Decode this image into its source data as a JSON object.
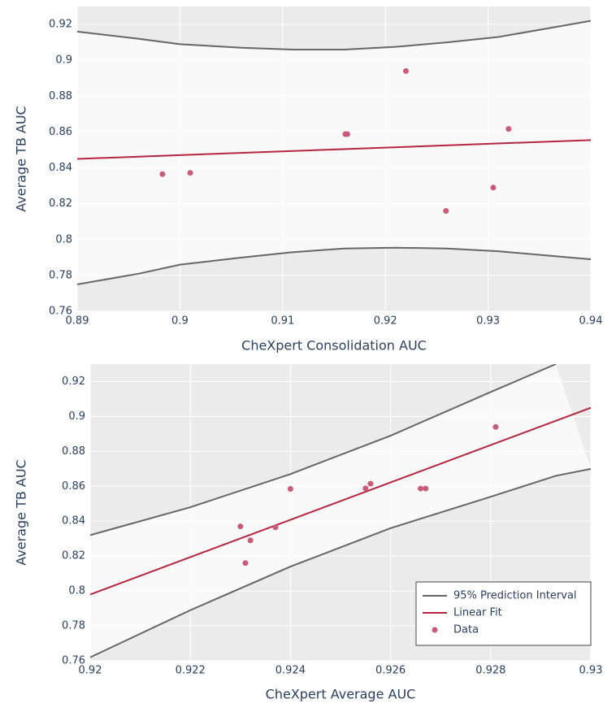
{
  "chart_data": [
    {
      "type": "scatter",
      "x_label": "CheXpert Consolidation AUC",
      "y_label": "Average TB AUC",
      "xlim": [
        0.89,
        0.94
      ],
      "xticks": [
        0.89,
        0.9,
        0.91,
        0.92,
        0.93,
        0.94
      ],
      "ylim": [
        0.76,
        0.93
      ],
      "yticks": [
        0.76,
        0.78,
        0.8,
        0.82,
        0.84,
        0.86,
        0.88,
        0.9,
        0.92
      ],
      "grid": true,
      "legend": false,
      "series": [
        {
          "mode": "band",
          "color": "#666666",
          "x": [
            0.89,
            0.896,
            0.9,
            0.906,
            0.911,
            0.916,
            0.921,
            0.926,
            0.931,
            0.936,
            0.94
          ],
          "upper": [
            0.916,
            0.912,
            0.909,
            0.907,
            0.906,
            0.906,
            0.9075,
            0.91,
            0.913,
            0.918,
            0.922
          ],
          "lower": [
            0.775,
            0.781,
            0.786,
            0.79,
            0.793,
            0.795,
            0.7955,
            0.795,
            0.7935,
            0.791,
            0.789
          ]
        },
        {
          "mode": "line",
          "color": "#b5253f",
          "x": [
            0.89,
            0.94
          ],
          "values": [
            0.845,
            0.8555
          ]
        },
        {
          "mode": "markers",
          "color": "#c95a78",
          "x": [
            0.8983,
            0.901,
            0.9161,
            0.9163,
            0.922,
            0.9259,
            0.9305,
            0.932
          ],
          "values": [
            0.8365,
            0.8372,
            0.8588,
            0.8588,
            0.894,
            0.816,
            0.829,
            0.8617
          ]
        }
      ]
    },
    {
      "type": "scatter",
      "x_label": "CheXpert Average AUC",
      "y_label": "Average TB AUC",
      "xlim": [
        0.92,
        0.93
      ],
      "xticks": [
        0.92,
        0.922,
        0.924,
        0.926,
        0.928,
        0.93
      ],
      "ylim": [
        0.76,
        0.93
      ],
      "yticks": [
        0.76,
        0.78,
        0.8,
        0.82,
        0.84,
        0.86,
        0.88,
        0.9,
        0.92
      ],
      "grid": true,
      "legend": "bottom-right",
      "series": [
        {
          "name": "95% Prediction Interval",
          "mode": "band",
          "color": "#666666",
          "x": [
            0.92,
            0.922,
            0.924,
            0.926,
            0.928,
            0.9293,
            0.93
          ],
          "upper": [
            0.832,
            0.848,
            0.867,
            0.889,
            0.914,
            0.93,
            null
          ],
          "lower": [
            0.762,
            0.789,
            0.814,
            0.836,
            0.854,
            0.866,
            0.87
          ]
        },
        {
          "name": "Linear Fit",
          "mode": "line",
          "color": "#b5253f",
          "x": [
            0.92,
            0.93
          ],
          "values": [
            0.798,
            0.905
          ]
        },
        {
          "name": "Data",
          "mode": "markers",
          "color": "#c95a78",
          "x": [
            0.923,
            0.9232,
            0.9231,
            0.9237,
            0.924,
            0.9255,
            0.9256,
            0.9266,
            0.9267,
            0.9281
          ],
          "values": [
            0.837,
            0.829,
            0.816,
            0.8365,
            0.8585,
            0.8588,
            0.8615,
            0.8587,
            0.8587,
            0.894
          ]
        }
      ]
    }
  ]
}
